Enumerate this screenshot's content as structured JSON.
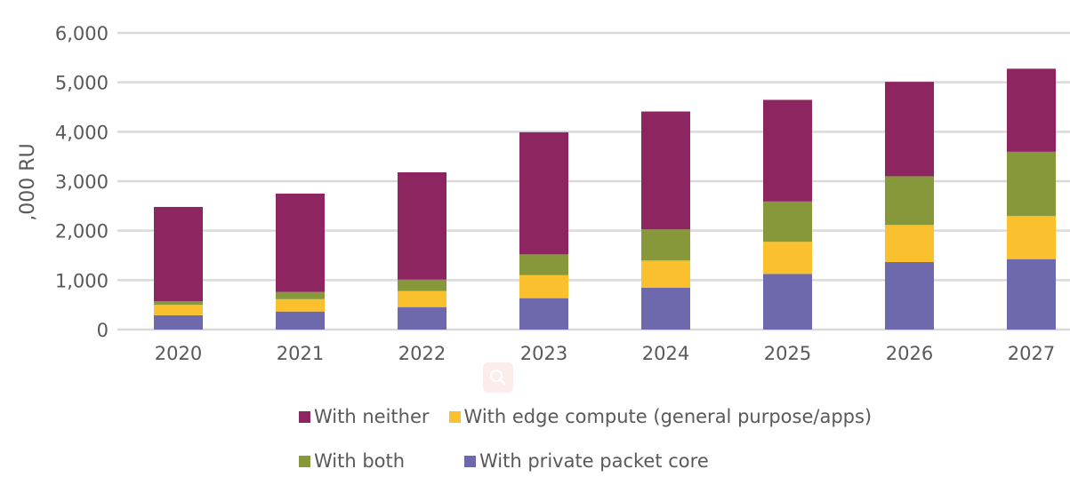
{
  "chart_data": {
    "type": "bar",
    "stacked": true,
    "title": "",
    "xlabel": "",
    "ylabel": ",000 RU",
    "ylim": [
      0,
      6000
    ],
    "yticks": [
      0,
      1000,
      2000,
      3000,
      4000,
      5000,
      6000
    ],
    "ytick_labels": [
      "0",
      "1,000",
      "2,000",
      "3,000",
      "4,000",
      "5,000",
      "6,000"
    ],
    "grid": true,
    "legend_position": "bottom",
    "categories": [
      "2020",
      "2021",
      "2022",
      "2023",
      "2024",
      "2025",
      "2026",
      "2027"
    ],
    "series": [
      {
        "name": "With private packet core",
        "color": "#6E69AD",
        "values": [
          290,
          365,
          455,
          635,
          845,
          1125,
          1365,
          1425
        ]
      },
      {
        "name": "With edge compute (general purpose/apps)",
        "color": "#FBC02D",
        "values": [
          210,
          250,
          325,
          465,
          550,
          650,
          750,
          870
        ]
      },
      {
        "name": "With both",
        "color": "#87983A",
        "values": [
          75,
          145,
          230,
          420,
          630,
          815,
          985,
          1300
        ]
      },
      {
        "name": "With neither",
        "color": "#8C2560",
        "values": [
          1905,
          1990,
          2170,
          2470,
          2385,
          2055,
          1910,
          1680
        ]
      }
    ]
  },
  "legend": {
    "rows": [
      [
        {
          "label": "With neither",
          "color": "#8C2560"
        },
        {
          "label": "With edge compute (general purpose/apps)",
          "color": "#FBC02D"
        }
      ],
      [
        {
          "label": "With both",
          "color": "#87983A"
        },
        {
          "label": "With private packet core",
          "color": "#6E69AD"
        }
      ]
    ]
  },
  "overlay": {
    "icon": "magnifier-icon"
  }
}
